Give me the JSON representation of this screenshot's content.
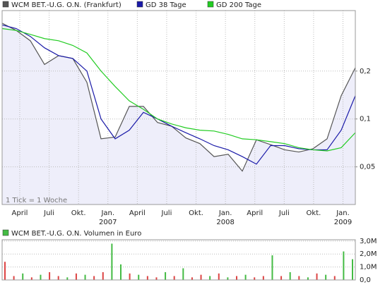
{
  "chart_data": [
    {
      "type": "line",
      "log_y": true,
      "grid": true,
      "annotation": "1 Tick = 1 Woche",
      "area_color": "#eeeefa",
      "xlim": [
        -0.6,
        11.42
      ],
      "xticks": [
        {
          "value": 0,
          "label": "April"
        },
        {
          "value": 1,
          "label": "Juli"
        },
        {
          "value": 2,
          "label": "Okt."
        },
        {
          "value": 3,
          "label": "Jan."
        },
        {
          "value": 4,
          "label": "April"
        },
        {
          "value": 5,
          "label": "Juli"
        },
        {
          "value": 6,
          "label": "Okt."
        },
        {
          "value": 7,
          "label": "Jan."
        },
        {
          "value": 8,
          "label": "April"
        },
        {
          "value": 9,
          "label": "Juli"
        },
        {
          "value": 10,
          "label": "Okt."
        },
        {
          "value": 11,
          "label": "Jan."
        }
      ],
      "x_year_labels": [
        {
          "value": 3,
          "label": "2007"
        },
        {
          "value": 7,
          "label": "2008"
        },
        {
          "value": 11,
          "label": "2009"
        }
      ],
      "ylim": [
        0.029,
        0.48
      ],
      "yticks": [
        {
          "value": 0.05,
          "label": "0,05"
        },
        {
          "value": 0.1,
          "label": "0,1"
        },
        {
          "value": 0.2,
          "label": "0,2"
        }
      ],
      "series": [
        {
          "name": "WCM BET.-U.G. O.N. (Frankfurt)",
          "color": "#555555",
          "values": [
            0.4,
            0.36,
            0.31,
            0.22,
            0.25,
            0.24,
            0.17,
            0.075,
            0.077,
            0.12,
            0.12,
            0.095,
            0.09,
            0.076,
            0.07,
            0.058,
            0.06,
            0.047,
            0.074,
            0.069,
            0.064,
            0.062,
            0.065,
            0.075,
            0.14,
            0.21
          ]
        },
        {
          "name": "GD 38 Tage",
          "color": "#1a1aa8",
          "values": [
            0.39,
            0.37,
            0.33,
            0.28,
            0.25,
            0.24,
            0.2,
            0.1,
            0.075,
            0.085,
            0.11,
            0.1,
            0.09,
            0.082,
            0.075,
            0.068,
            0.064,
            0.058,
            0.052,
            0.068,
            0.068,
            0.065,
            0.064,
            0.064,
            0.085,
            0.14
          ]
        },
        {
          "name": "GD 200 Tage",
          "color": "#22cc22",
          "values": [
            0.37,
            0.36,
            0.34,
            0.32,
            0.31,
            0.29,
            0.26,
            0.2,
            0.16,
            0.13,
            0.115,
            0.1,
            0.093,
            0.088,
            0.085,
            0.084,
            0.08,
            0.075,
            0.074,
            0.072,
            0.07,
            0.066,
            0.064,
            0.063,
            0.066,
            0.082
          ]
        }
      ]
    },
    {
      "type": "bar",
      "title": "WCM BET.-U.G. O.N. Volumen in Euro",
      "title_color": "#44bb44",
      "grid": true,
      "ylim": [
        0,
        3100000
      ],
      "yticks": [
        {
          "value": 0,
          "label": "0,0"
        },
        {
          "value": 1000000,
          "label": "1,0M"
        },
        {
          "value": 2000000,
          "label": "2,0M"
        },
        {
          "value": 3000000,
          "label": "3,0M"
        }
      ],
      "values": [
        1400000,
        300000,
        500000,
        200000,
        400000,
        600000,
        300000,
        200000,
        500000,
        400000,
        300000,
        600000,
        2800000,
        1200000,
        500000,
        400000,
        300000,
        200000,
        600000,
        300000,
        900000,
        200000,
        400000,
        300000,
        500000,
        200000,
        300000,
        400000,
        200000,
        300000,
        1900000,
        300000,
        600000,
        300000,
        200000,
        500000,
        400000,
        300000,
        2200000,
        1600000
      ],
      "colors": [
        "#dd4444",
        "#dd4444",
        "#44bb44",
        "#dd4444",
        "#44bb44",
        "#dd4444",
        "#dd4444",
        "#44bb44",
        "#dd4444",
        "#44bb44",
        "#dd4444",
        "#dd4444",
        "#44bb44",
        "#44bb44",
        "#dd4444",
        "#44bb44",
        "#dd4444",
        "#dd4444",
        "#44bb44",
        "#dd4444",
        "#44bb44",
        "#dd4444",
        "#dd4444",
        "#44bb44",
        "#dd4444",
        "#44bb44",
        "#dd4444",
        "#44bb44",
        "#dd4444",
        "#dd4444",
        "#44bb44",
        "#dd4444",
        "#44bb44",
        "#dd4444",
        "#44bb44",
        "#dd4444",
        "#44bb44",
        "#dd4444",
        "#44bb44",
        "#44bb44"
      ]
    }
  ]
}
